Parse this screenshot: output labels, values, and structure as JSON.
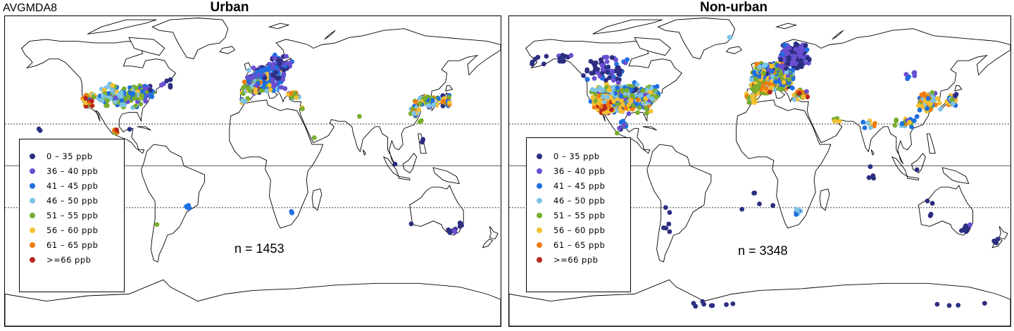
{
  "corner_label": "AVGMDA8",
  "legend_items": [
    {
      "label": "0 – 35  ppb",
      "color": "#2c2e82"
    },
    {
      "label": "36 – 40  ppb",
      "color": "#6a4fd0"
    },
    {
      "label": "41 – 45  ppb",
      "color": "#1e6fe0"
    },
    {
      "label": "46 – 50  ppb",
      "color": "#7ec4e6"
    },
    {
      "label": "51 – 55  ppb",
      "color": "#78ad2e"
    },
    {
      "label": "56 – 60  ppb",
      "color": "#f5c030"
    },
    {
      "label": "61 – 65  ppb",
      "color": "#f07d10"
    },
    {
      "label": ">=66  ppb",
      "color": "#b5261e"
    }
  ],
  "panels": [
    {
      "title": "Urban",
      "count_label": "n = 1453"
    },
    {
      "title": "Non-urban",
      "count_label": "n = 3348"
    }
  ]
}
